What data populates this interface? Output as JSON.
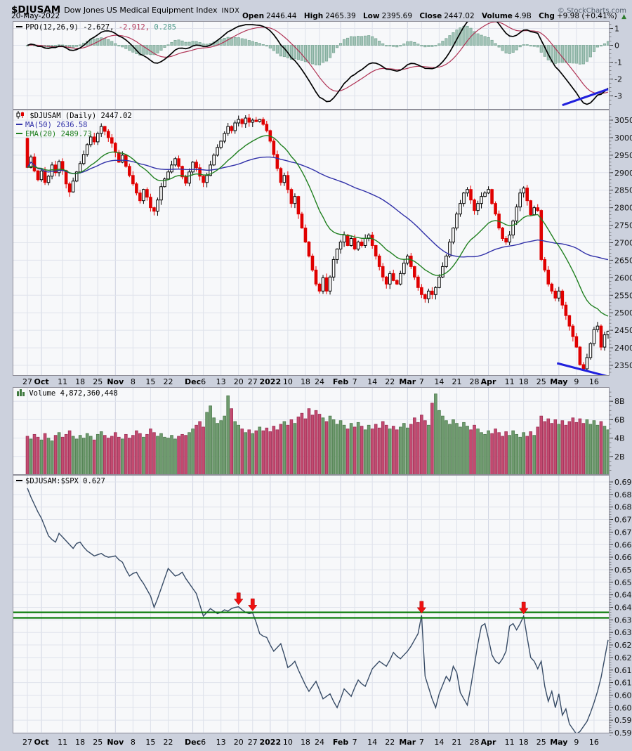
{
  "header": {
    "symbol": "$DJUSAM",
    "name": "Dow Jones US Medical Equipment Index",
    "exchange": "INDX",
    "date": "20-May-2022",
    "copyright": "© StockCharts.com",
    "quote": {
      "open_label": "Open",
      "open": "2446.44",
      "high_label": "High",
      "high": "2465.39",
      "low_label": "Low",
      "low": "2395.69",
      "close_label": "Close",
      "close": "2447.02",
      "volume_label": "Volume",
      "volume": "4.9B",
      "chg_label": "Chg",
      "chg": "+9.98 (+0.41%)",
      "direction": "▲"
    }
  },
  "legends": {
    "ppo": {
      "label": "PPO(12,26,9)",
      "v1": "-2.627,",
      "v2": "-2.912,",
      "v3": "0.285"
    },
    "price": {
      "symbol": "$DJUSAM (Daily) 2447.02",
      "ma": "MA(50) 2636.58",
      "ema": "EMA(20) 2489.73"
    },
    "volume": {
      "label": "Volume 4,872,360,448"
    },
    "ratio": {
      "label": "$DJUSAM:$SPX 0.627"
    }
  },
  "palette": {
    "plot_bg": "#f7f8fa",
    "outer_bg": "#ccd1dd",
    "grid": "#dde1ea",
    "grid_month": "#cfd4e2",
    "grid_h": "#e0e3ec",
    "border": "#90909a",
    "candle_down": "#e00000",
    "candle_up_stroke": "#000000",
    "candle_up_fill": "#ffffff",
    "ma50": "#3030a8",
    "ema20": "#208020",
    "ppo_line": "#000000",
    "ppo_signal": "#b03355",
    "ppo_hist_fill": "#a3c3b8",
    "ppo_hist_stroke": "#76a491",
    "vol_up_fill": "#6f9b6f",
    "vol_up_stroke": "#4c7a4c",
    "vol_down_fill": "#c34a70",
    "vol_down_stroke": "#9d3056",
    "ratio_line": "#374b66",
    "resistance": "#0b7c0b",
    "arrow": "#ee1111",
    "trendline": "#2020dd"
  },
  "chart_data": [
    {
      "type": "line",
      "name": "PPO (12,26,9)",
      "panel": "indicator",
      "params": {
        "fast": 12,
        "slow": 26,
        "signal": 9
      },
      "last_values": {
        "ppo": -2.627,
        "signal": -2.912,
        "histogram": 0.285
      },
      "y_ticks": [
        1,
        0,
        -1,
        -2,
        -3
      ],
      "ylim": [
        -3.8,
        1.45
      ],
      "derived_from": "closes of price panel",
      "trendline": {
        "points": [
          [
            152,
            -3.55
          ],
          [
            165,
            -2.6
          ]
        ]
      }
    },
    {
      "type": "candlestick",
      "name": "$DJUSAM Daily",
      "first_open": 2998,
      "last_close": 2447.02,
      "ylim": [
        2326,
        3068
      ],
      "y_ticks": [
        3050,
        3000,
        2950,
        2900,
        2850,
        2800,
        2750,
        2700,
        2650,
        2600,
        2550,
        2500,
        2450,
        2400,
        2350
      ],
      "overlays": [
        {
          "name": "MA(50)",
          "last": 2636.58
        },
        {
          "name": "EMA(20)",
          "last": 2489.73
        }
      ],
      "trendline": {
        "points": [
          [
            150.5,
            2356
          ],
          [
            165.8,
            2316
          ]
        ]
      },
      "x_ticks": [
        {
          "label": "27",
          "day": 0,
          "bold": false
        },
        {
          "label": "Oct",
          "day": 4,
          "bold": true
        },
        {
          "label": "11",
          "day": 10,
          "bold": false
        },
        {
          "label": "18",
          "day": 15,
          "bold": false
        },
        {
          "label": "25",
          "day": 20,
          "bold": false
        },
        {
          "label": "Nov",
          "day": 25,
          "bold": true
        },
        {
          "label": "8",
          "day": 30,
          "bold": false
        },
        {
          "label": "15",
          "day": 35,
          "bold": false
        },
        {
          "label": "22",
          "day": 40,
          "bold": false
        },
        {
          "label": "Dec",
          "day": 47,
          "bold": true
        },
        {
          "label": "6",
          "day": 50,
          "bold": false
        },
        {
          "label": "13",
          "day": 55,
          "bold": false
        },
        {
          "label": "20",
          "day": 60,
          "bold": false
        },
        {
          "label": "27",
          "day": 64,
          "bold": false
        },
        {
          "label": "2022",
          "day": 69,
          "bold": true
        },
        {
          "label": "10",
          "day": 74,
          "bold": false
        },
        {
          "label": "18",
          "day": 79,
          "bold": false
        },
        {
          "label": "24",
          "day": 83,
          "bold": false
        },
        {
          "label": "Feb",
          "day": 89,
          "bold": true
        },
        {
          "label": "7",
          "day": 93,
          "bold": false
        },
        {
          "label": "14",
          "day": 98,
          "bold": false
        },
        {
          "label": "22",
          "day": 103,
          "bold": false
        },
        {
          "label": "Mar",
          "day": 108,
          "bold": true
        },
        {
          "label": "7",
          "day": 112,
          "bold": false
        },
        {
          "label": "14",
          "day": 117,
          "bold": false
        },
        {
          "label": "21",
          "day": 122,
          "bold": false
        },
        {
          "label": "28",
          "day": 127,
          "bold": false
        },
        {
          "label": "Apr",
          "day": 131,
          "bold": true
        },
        {
          "label": "11",
          "day": 137,
          "bold": false
        },
        {
          "label": "18",
          "day": 141,
          "bold": false
        },
        {
          "label": "25",
          "day": 146,
          "bold": false
        },
        {
          "label": "May",
          "day": 151,
          "bold": true
        },
        {
          "label": "9",
          "day": 156,
          "bold": false
        },
        {
          "label": "16",
          "day": 161,
          "bold": false
        }
      ],
      "closes": [
        2915,
        2945,
        2905,
        2880,
        2905,
        2872,
        2890,
        2922,
        2900,
        2932,
        2906,
        2868,
        2845,
        2876,
        2902,
        2926,
        2952,
        2980,
        3002,
        2988,
        3012,
        3032,
        3018,
        3000,
        2984,
        2958,
        2930,
        2950,
        2918,
        2892,
        2868,
        2842,
        2820,
        2852,
        2830,
        2800,
        2790,
        2822,
        2860,
        2882,
        2902,
        2922,
        2940,
        2918,
        2888,
        2870,
        2902,
        2930,
        2914,
        2890,
        2872,
        2892,
        2922,
        2950,
        2972,
        2990,
        3012,
        3032,
        3020,
        3042,
        3052,
        3040,
        3056,
        3044,
        3050,
        3046,
        3052,
        3038,
        3020,
        2990,
        2952,
        2912,
        2872,
        2892,
        2852,
        2812,
        2832,
        2782,
        2742,
        2702,
        2662,
        2622,
        2582,
        2562,
        2600,
        2562,
        2602,
        2652,
        2682,
        2702,
        2722,
        2692,
        2712,
        2682,
        2702,
        2692,
        2712,
        2722,
        2692,
        2662,
        2632,
        2602,
        2582,
        2612,
        2592,
        2582,
        2612,
        2642,
        2662,
        2632,
        2602,
        2572,
        2552,
        2540,
        2562,
        2552,
        2572,
        2602,
        2632,
        2662,
        2702,
        2742,
        2782,
        2812,
        2842,
        2852,
        2822,
        2792,
        2812,
        2832,
        2842,
        2852,
        2812,
        2782,
        2742,
        2712,
        2702,
        2722,
        2762,
        2802,
        2842,
        2856,
        2820,
        2780,
        2800,
        2792,
        2652,
        2622,
        2582,
        2562,
        2542,
        2562,
        2522,
        2492,
        2462,
        2432,
        2402,
        2352,
        2340,
        2372,
        2412,
        2452,
        2462,
        2402,
        2437.04,
        2447.02
      ]
    },
    {
      "type": "bar",
      "name": "Volume",
      "unit": "billions of shares",
      "last_label": "4,872,360,448",
      "y_ticks": [
        {
          "label": "8B",
          "v": 8
        },
        {
          "label": "6B",
          "v": 6
        },
        {
          "label": "4B",
          "v": 4
        },
        {
          "label": "2B",
          "v": 2
        }
      ],
      "values": [
        4.2,
        3.9,
        4.4,
        4.1,
        3.8,
        4.5,
        4.0,
        3.7,
        4.3,
        4.6,
        4.1,
        4.4,
        4.8,
        4.2,
        3.9,
        4.3,
        4.0,
        4.5,
        4.2,
        3.8,
        4.4,
        4.7,
        4.3,
        4.0,
        4.2,
        4.6,
        4.1,
        3.9,
        4.4,
        4.0,
        4.3,
        4.8,
        4.5,
        4.1,
        4.4,
        5.0,
        4.6,
        4.2,
        4.5,
        4.1,
        4.0,
        4.3,
        3.9,
        4.2,
        4.4,
        4.3,
        4.6,
        5.0,
        5.4,
        5.8,
        5.2,
        6.8,
        7.5,
        6.2,
        5.6,
        5.9,
        6.4,
        8.6,
        7.2,
        5.8,
        5.4,
        5.0,
        4.6,
        4.9,
        4.5,
        4.8,
        5.2,
        4.8,
        5.1,
        4.7,
        5.3,
        4.9,
        5.5,
        5.8,
        5.4,
        6.0,
        5.6,
        6.3,
        6.7,
        6.1,
        7.2,
        6.5,
        7.0,
        6.6,
        6.2,
        5.8,
        6.4,
        6.0,
        5.5,
        5.9,
        5.4,
        5.0,
        5.6,
        5.2,
        5.7,
        5.3,
        4.9,
        5.4,
        5.0,
        5.5,
        5.1,
        5.8,
        5.4,
        5.0,
        5.3,
        4.9,
        5.2,
        5.6,
        5.1,
        5.5,
        6.2,
        5.7,
        6.5,
        5.9,
        5.4,
        7.8,
        8.8,
        7.0,
        6.4,
        5.9,
        5.5,
        6.0,
        5.6,
        5.2,
        5.7,
        5.3,
        4.9,
        5.4,
        5.0,
        4.6,
        4.4,
        4.8,
        4.5,
        5.0,
        4.6,
        4.2,
        4.7,
        4.3,
        4.8,
        4.4,
        4.1,
        4.6,
        4.2,
        4.7,
        4.3,
        5.2,
        6.4,
        5.8,
        6.1,
        5.6,
        6.0,
        5.5,
        5.9,
        5.4,
        5.8,
        6.2,
        5.7,
        6.1,
        5.6,
        6.0,
        5.5,
        5.9,
        5.4,
        5.8,
        5.3,
        4.9
      ]
    },
    {
      "type": "line",
      "name": "$DJUSAM:$SPX ratio",
      "last": 0.627,
      "ylim": [
        0.588,
        0.691
      ],
      "y_ticks": [
        0.69,
        0.685,
        0.68,
        0.675,
        0.67,
        0.665,
        0.66,
        0.655,
        0.65,
        0.645,
        0.64,
        0.635,
        0.63,
        0.625,
        0.62,
        0.615,
        0.61,
        0.605,
        0.6,
        0.595,
        0.59
      ],
      "resistance_lines": [
        0.638,
        0.6358
      ],
      "arrows": [
        {
          "day": 60,
          "value": 0.6402
        },
        {
          "day": 64,
          "value": 0.6378
        },
        {
          "day": 112,
          "value": 0.6368
        },
        {
          "day": 141,
          "value": 0.6365
        }
      ],
      "values": [
        0.6875,
        0.684,
        0.681,
        0.678,
        0.6755,
        0.672,
        0.6685,
        0.667,
        0.666,
        0.6695,
        0.668,
        0.6665,
        0.665,
        0.6635,
        0.6655,
        0.666,
        0.664,
        0.6625,
        0.6615,
        0.6605,
        0.661,
        0.6615,
        0.6605,
        0.66,
        0.6602,
        0.6605,
        0.659,
        0.658,
        0.655,
        0.6525,
        0.6535,
        0.654,
        0.6515,
        0.6495,
        0.647,
        0.6445,
        0.64,
        0.6435,
        0.6475,
        0.6515,
        0.6555,
        0.654,
        0.6525,
        0.653,
        0.654,
        0.6515,
        0.6495,
        0.6475,
        0.6455,
        0.641,
        0.6365,
        0.638,
        0.6395,
        0.6385,
        0.6375,
        0.638,
        0.639,
        0.6385,
        0.6395,
        0.64,
        0.6402,
        0.639,
        0.638,
        0.6375,
        0.6378,
        0.634,
        0.6295,
        0.6285,
        0.628,
        0.625,
        0.6225,
        0.624,
        0.6255,
        0.621,
        0.616,
        0.617,
        0.6185,
        0.615,
        0.612,
        0.609,
        0.6065,
        0.6085,
        0.6105,
        0.607,
        0.6035,
        0.6045,
        0.6055,
        0.6025,
        0.6,
        0.6035,
        0.6075,
        0.606,
        0.6045,
        0.608,
        0.611,
        0.6095,
        0.6085,
        0.612,
        0.6155,
        0.617,
        0.6185,
        0.6175,
        0.6165,
        0.619,
        0.622,
        0.6205,
        0.6195,
        0.621,
        0.6225,
        0.6245,
        0.627,
        0.6295,
        0.6368,
        0.6125,
        0.608,
        0.6035,
        0.6,
        0.6055,
        0.609,
        0.6125,
        0.6105,
        0.6165,
        0.614,
        0.606,
        0.6035,
        0.601,
        0.6085,
        0.617,
        0.6255,
        0.6325,
        0.6335,
        0.6275,
        0.621,
        0.6185,
        0.6175,
        0.6195,
        0.6225,
        0.6325,
        0.6335,
        0.631,
        0.6335,
        0.6365,
        0.628,
        0.62,
        0.6185,
        0.6155,
        0.6185,
        0.6085,
        0.6025,
        0.6065,
        0.6,
        0.6055,
        0.597,
        0.5995,
        0.5935,
        0.5915,
        0.5895,
        0.5905,
        0.5925,
        0.5945,
        0.598,
        0.602,
        0.6065,
        0.612,
        0.6195,
        0.627
      ]
    }
  ]
}
